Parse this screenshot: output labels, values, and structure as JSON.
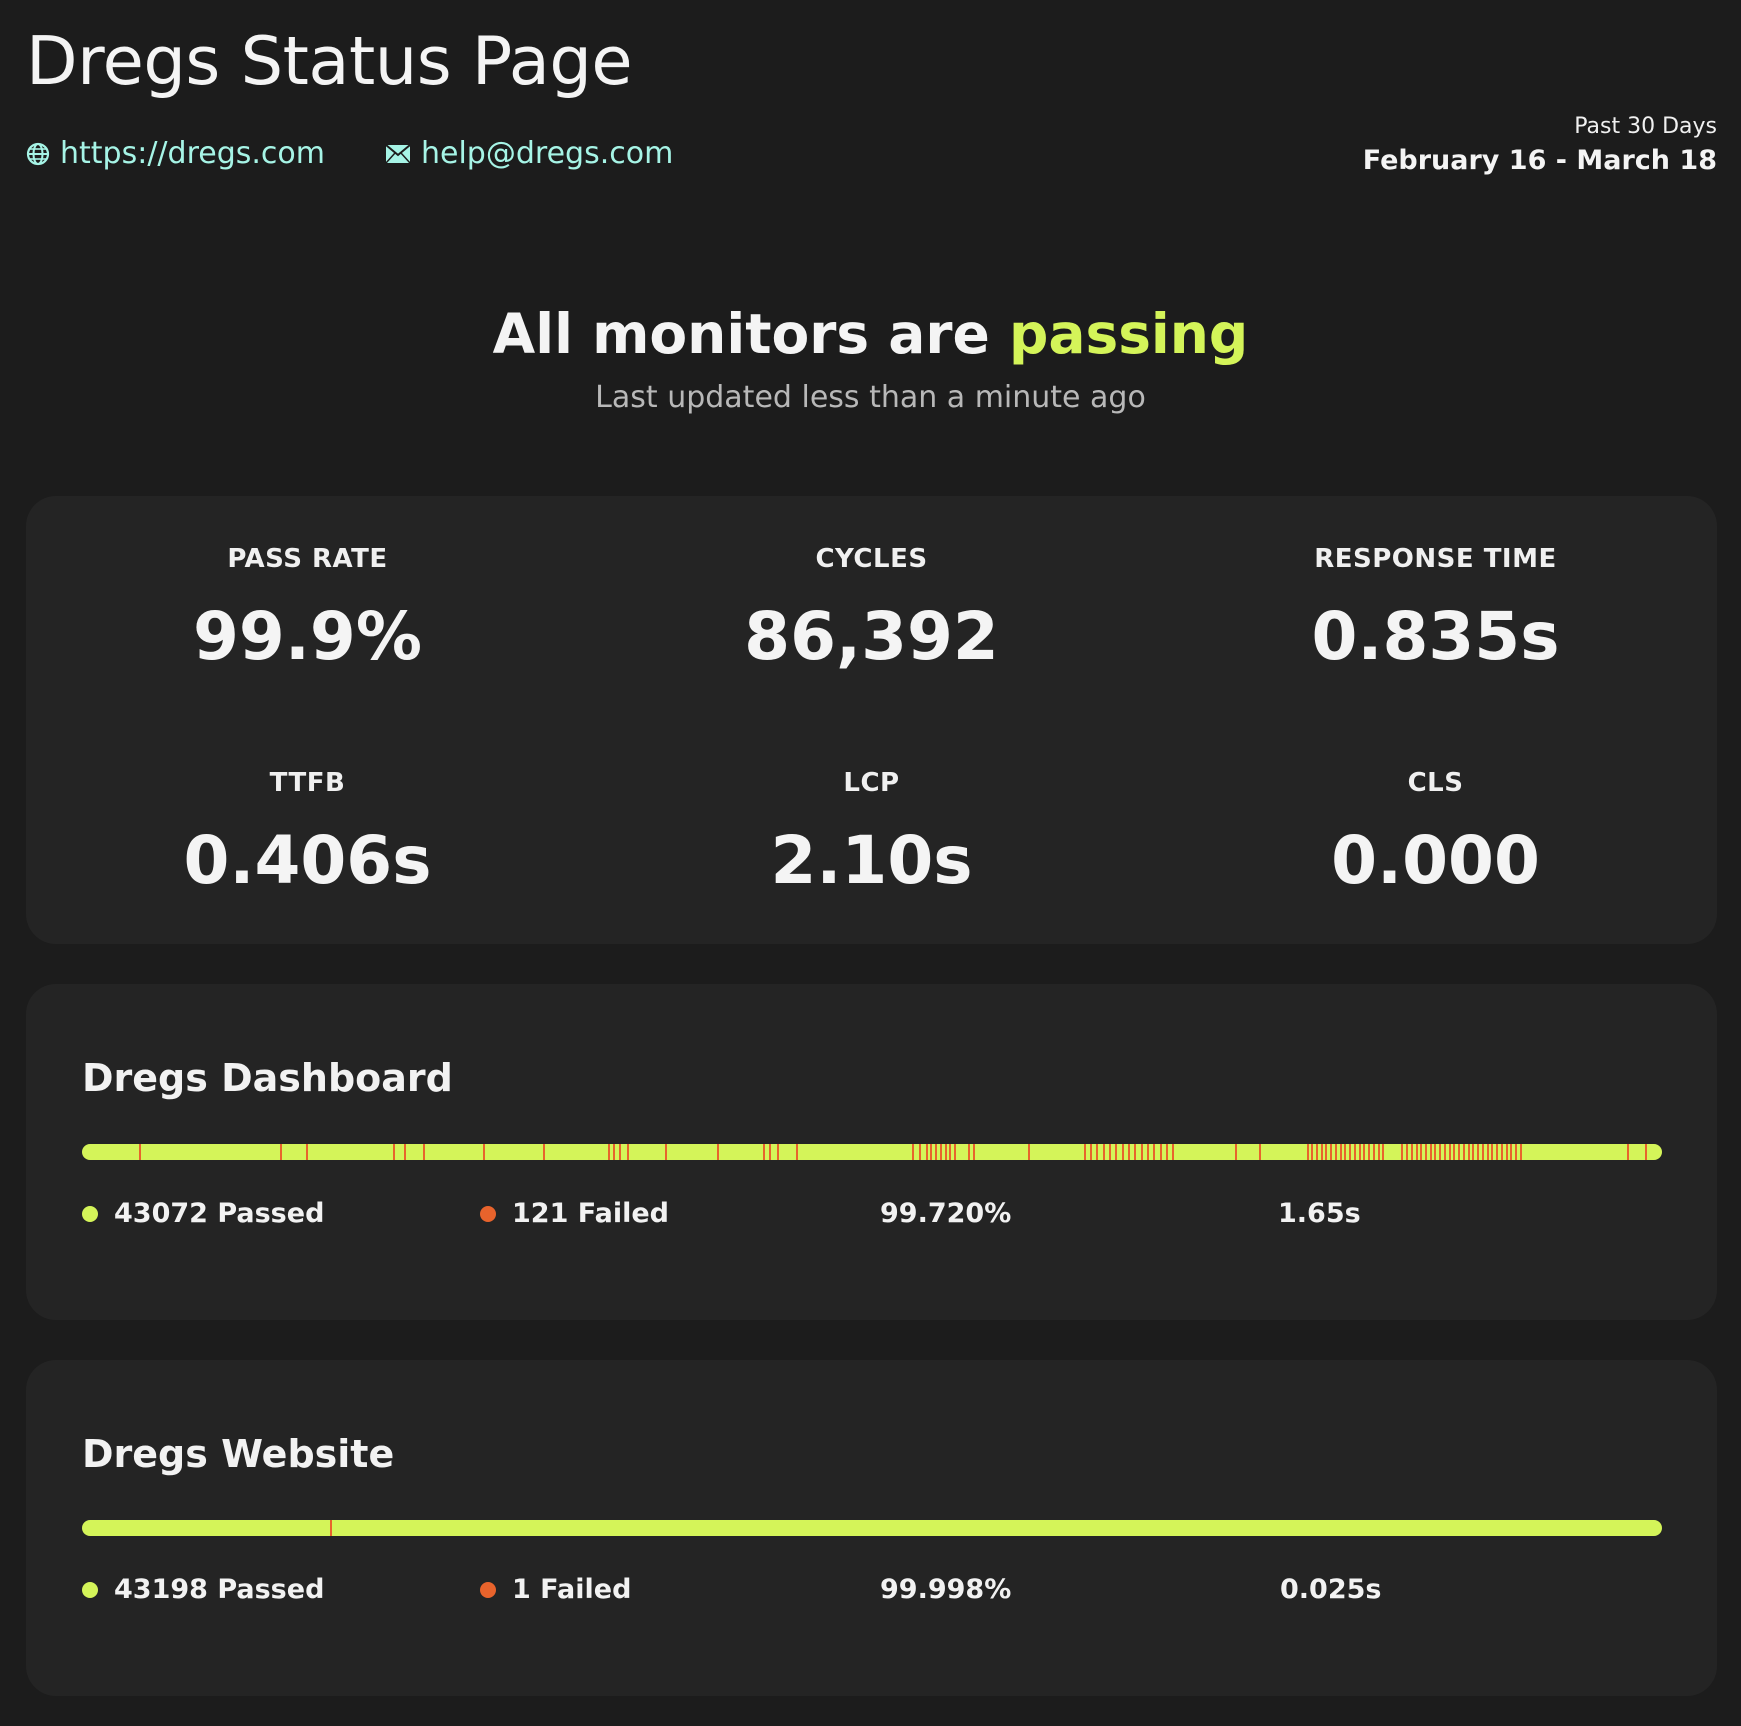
{
  "header": {
    "title": "Dregs Status Page",
    "website": "https://dregs.com",
    "email": "help@dregs.com",
    "period_label": "Past 30 Days",
    "period_range": "February 16 - March 18"
  },
  "hero": {
    "title_prefix": "All monitors are ",
    "title_status": "passing",
    "subtitle": "Last updated less than a minute ago"
  },
  "stats": [
    {
      "label": "PASS RATE",
      "value": "99.9%"
    },
    {
      "label": "CYCLES",
      "value": "86,392"
    },
    {
      "label": "RESPONSE TIME",
      "value": "0.835s"
    },
    {
      "label": "TTFB",
      "value": "0.406s"
    },
    {
      "label": "LCP",
      "value": "2.10s"
    },
    {
      "label": "CLS",
      "value": "0.000"
    }
  ],
  "monitors": [
    {
      "name": "Dregs Dashboard",
      "passed": "43072 Passed",
      "failed": "121 Failed",
      "pass_rate": "99.720%",
      "response_time": "1.65s",
      "failure_marks": [
        0.036,
        0.125,
        0.142,
        0.197,
        0.204,
        0.216,
        0.254,
        0.292,
        0.333,
        0.336,
        0.34,
        0.345,
        0.369,
        0.402,
        0.431,
        0.435,
        0.44,
        0.452,
        0.525,
        0.53,
        0.534,
        0.537,
        0.54,
        0.543,
        0.546,
        0.549,
        0.552,
        0.561,
        0.564,
        0.599,
        0.634,
        0.638,
        0.642,
        0.646,
        0.65,
        0.654,
        0.658,
        0.662,
        0.666,
        0.67,
        0.674,
        0.678,
        0.682,
        0.686,
        0.69,
        0.73,
        0.745,
        0.775,
        0.778,
        0.781,
        0.784,
        0.787,
        0.79,
        0.793,
        0.796,
        0.799,
        0.802,
        0.805,
        0.808,
        0.811,
        0.814,
        0.817,
        0.82,
        0.823,
        0.835,
        0.838,
        0.841,
        0.844,
        0.847,
        0.85,
        0.853,
        0.856,
        0.859,
        0.862,
        0.865,
        0.868,
        0.871,
        0.874,
        0.877,
        0.88,
        0.883,
        0.886,
        0.889,
        0.892,
        0.895,
        0.898,
        0.901,
        0.904,
        0.907,
        0.91,
        0.978,
        0.989
      ],
      "colors": {
        "pass": "#d4f459",
        "fail": "#e8632c"
      }
    },
    {
      "name": "Dregs Website",
      "passed": "43198 Passed",
      "failed": "1 Failed",
      "pass_rate": "99.998%",
      "response_time": "0.025s",
      "failure_marks": [
        0.157
      ],
      "colors": {
        "pass": "#d4f459",
        "fail": "#e8632c"
      }
    }
  ],
  "icons": {
    "website": "globe-icon",
    "email": "envelope-icon"
  },
  "colors": {
    "background": "#1c1c1c",
    "card": "#242424",
    "accent_pass": "#d4f459",
    "accent_fail": "#e8632c",
    "link": "#a6f4e6"
  }
}
